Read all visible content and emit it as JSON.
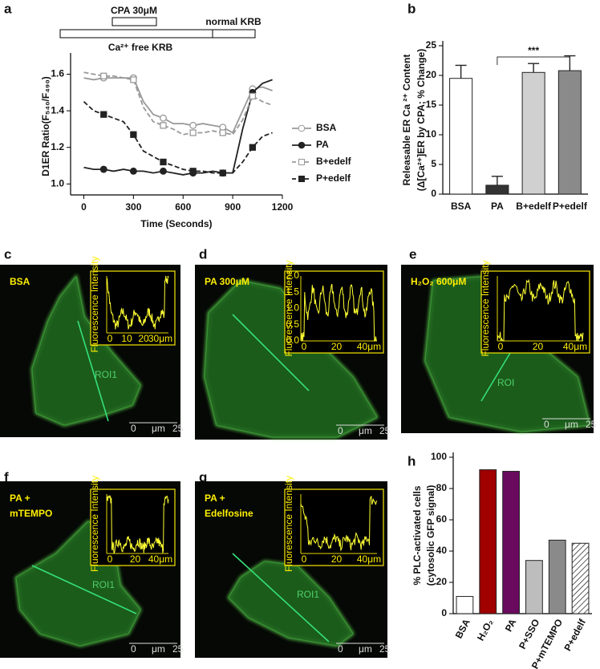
{
  "chart_data": [
    {
      "type": "line",
      "panel": "a",
      "ylabel": [
        "D1ER Ratio(F₅₄₀/F₄₉₀)"
      ],
      "xlabel": "Time (Seconds)",
      "annotations": [
        "CPA 30μM",
        "normal KRB",
        "Ca²⁺ free KRB"
      ],
      "x": [
        0,
        60,
        120,
        180,
        240,
        300,
        360,
        420,
        480,
        540,
        600,
        660,
        720,
        780,
        840,
        900,
        960,
        1020,
        1080,
        1140
      ],
      "xlim": [
        -80,
        1200
      ],
      "xticks": [
        0,
        300,
        600,
        900,
        1200
      ],
      "ylim": [
        0.94,
        1.69
      ],
      "yticks": [
        {
          "value": 1.0,
          "label": "1.0"
        },
        {
          "value": 1.2,
          "label": "1.2"
        },
        {
          "value": 1.4,
          "label": "1.4"
        },
        {
          "value": 1.6,
          "label": "1.6"
        }
      ],
      "legend": "right",
      "series": [
        {
          "name": "BSA",
          "color": "#999999",
          "dash": false,
          "marker": "circle",
          "filled": false,
          "values": [
            1.58,
            1.57,
            1.58,
            1.58,
            1.58,
            1.58,
            1.45,
            1.38,
            1.36,
            1.33,
            1.33,
            1.32,
            1.33,
            1.32,
            1.31,
            1.28,
            1.4,
            1.52,
            1.53,
            1.51
          ]
        },
        {
          "name": "PA",
          "color": "#222222",
          "dash": false,
          "marker": "circle",
          "filled": true,
          "values": [
            1.09,
            1.08,
            1.08,
            1.07,
            1.08,
            1.07,
            1.07,
            1.06,
            1.07,
            1.06,
            1.05,
            1.06,
            1.06,
            1.07,
            1.06,
            1.06,
            1.3,
            1.5,
            1.55,
            1.57
          ]
        },
        {
          "name": "B+edelf",
          "color": "#999999",
          "dash": true,
          "marker": "square",
          "filled": false,
          "values": [
            1.61,
            1.6,
            1.59,
            1.59,
            1.58,
            1.57,
            1.42,
            1.34,
            1.32,
            1.3,
            1.27,
            1.28,
            1.28,
            1.29,
            1.28,
            1.27,
            1.35,
            1.48,
            1.45,
            1.43
          ]
        },
        {
          "name": "P+edelf",
          "color": "#222222",
          "dash": true,
          "marker": "square",
          "filled": true,
          "values": [
            1.45,
            1.4,
            1.38,
            1.36,
            1.34,
            1.27,
            1.18,
            1.15,
            1.12,
            1.1,
            1.08,
            1.07,
            1.07,
            1.06,
            1.06,
            1.06,
            1.12,
            1.2,
            1.26,
            1.28
          ]
        }
      ]
    },
    {
      "type": "bar",
      "panel": "b",
      "ylabel": [
        "Releasable  ER Ca ²⁺ Content",
        "(Δ[Ca²⁺]ER by CPA; % Change)"
      ],
      "categories": [
        "BSA",
        "PA",
        "B+edelf",
        "P+edelf"
      ],
      "values": [
        19.5,
        1.5,
        20.5,
        20.8
      ],
      "errors": [
        2.2,
        1.5,
        1.5,
        2.5
      ],
      "colors": [
        "#ffffff",
        "#333333",
        "#d0d0d0",
        "#8a8a8a"
      ],
      "hatch": [
        false,
        false,
        false,
        false
      ],
      "significance": "***",
      "ylim": [
        0,
        25
      ],
      "yticks": [
        0,
        5,
        10,
        15,
        20,
        25
      ]
    },
    {
      "type": "bar",
      "panel": "h",
      "ylabel": [
        "% PLC-activated cells",
        "(cytosolic GFP signal)"
      ],
      "categories": [
        "BSA",
        "H₂O₂",
        "PA",
        "P+SSO",
        "P+mTEMPO",
        "P+edelf"
      ],
      "values": [
        11,
        92,
        91,
        34,
        47,
        45
      ],
      "colors": [
        "#ffffff",
        "#a00000",
        "#6a0a5e",
        "#bdbdbd",
        "#8a8a8a",
        "#ffffff"
      ],
      "hatch": [
        false,
        false,
        false,
        false,
        false,
        true
      ],
      "ylim": [
        0,
        100
      ],
      "yticks": [
        0,
        20,
        40,
        60,
        80,
        100
      ]
    }
  ],
  "images": [
    {
      "panel": "c",
      "label": [
        "BSA"
      ],
      "roi": "ROI1",
      "inset_ylabel": "Fluorescence Intensity",
      "inset_xticks": [
        "0",
        "10",
        "20",
        "30μm"
      ],
      "scale": [
        "0",
        "μm",
        "25"
      ]
    },
    {
      "panel": "d",
      "label": [
        "PA 300μM"
      ],
      "inset_ylabel": "Fluorescence Intensity",
      "inset_xticks": [
        "0",
        "20",
        "40μm"
      ],
      "inset_yticks": [
        "0.0",
        "0.5",
        "1.0",
        "1.5",
        "2.0"
      ],
      "scale": [
        "0",
        "μm",
        "25"
      ]
    },
    {
      "panel": "e",
      "label": [
        "H₂O₂ 600μM"
      ],
      "roi": "ROI",
      "inset_ylabel": "Fluorescence Intensity",
      "inset_xticks": [
        "0",
        "20",
        "40μm"
      ],
      "scale": [
        "0",
        "μm",
        "25"
      ]
    },
    {
      "panel": "f",
      "label": [
        "PA +",
        "mTEMPO"
      ],
      "roi": "ROI1",
      "inset_ylabel": "Fluorescence Intensity",
      "inset_xticks": [
        "0",
        "20",
        "40μm"
      ],
      "scale": [
        "0",
        "μm",
        "25"
      ]
    },
    {
      "panel": "g",
      "label": [
        "PA +",
        "Edelfosine"
      ],
      "roi": "ROI1",
      "inset_ylabel": "Fluorescence Intensity",
      "inset_xticks": [
        "0",
        "20",
        "40μm"
      ],
      "scale": [
        "0",
        "μm",
        "25"
      ]
    }
  ]
}
